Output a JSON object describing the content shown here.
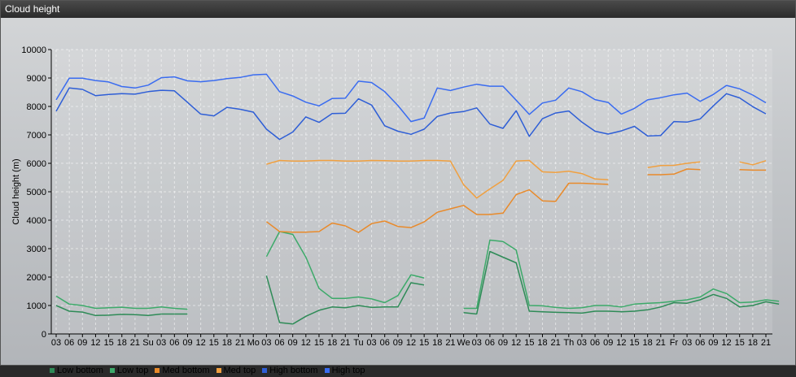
{
  "window": {
    "title": "Cloud height"
  },
  "chart_data": {
    "type": "line",
    "title": "",
    "xlabel": "",
    "ylabel": "Cloud height (m)",
    "ylim": [
      0,
      10000
    ],
    "yticks": [
      0,
      1000,
      2000,
      3000,
      4000,
      5000,
      6000,
      7000,
      8000,
      9000,
      10000
    ],
    "xticks": [
      "03",
      "06",
      "09",
      "12",
      "15",
      "18",
      "21",
      "Su",
      "03",
      "06",
      "09",
      "12",
      "15",
      "18",
      "21",
      "Mo",
      "03",
      "06",
      "09",
      "12",
      "15",
      "18",
      "21",
      "Tu",
      "03",
      "06",
      "09",
      "12",
      "15",
      "18",
      "21",
      "We",
      "03",
      "06",
      "09",
      "12",
      "15",
      "18",
      "21",
      "Th",
      "03",
      "06",
      "09",
      "12",
      "15",
      "18",
      "21",
      "Fr",
      "03",
      "06",
      "09",
      "12",
      "15",
      "18",
      "21"
    ],
    "grid": true,
    "legend_position": "bottom-left",
    "series": [
      {
        "name": "Low bottom",
        "color": "#2e8b57",
        "values": [
          1000,
          800,
          770,
          650,
          660,
          690,
          680,
          650,
          700,
          700,
          700,
          null,
          null,
          null,
          null,
          null,
          2050,
          400,
          350,
          620,
          830,
          950,
          920,
          1000,
          930,
          950,
          950,
          1800,
          1720,
          null,
          null,
          750,
          700,
          2900,
          2700,
          2500,
          800,
          780,
          760,
          750,
          730,
          800,
          800,
          780,
          800,
          850,
          950,
          1100,
          1080,
          1200,
          1390,
          1250,
          950,
          1000,
          1130,
          1050
        ]
      },
      {
        "name": "Low top",
        "color": "#3daa6a",
        "values": [
          1330,
          1050,
          1000,
          900,
          920,
          940,
          900,
          900,
          950,
          900,
          870,
          null,
          null,
          null,
          null,
          null,
          2720,
          3600,
          3500,
          2700,
          1600,
          1250,
          1250,
          1300,
          1230,
          1100,
          1350,
          2080,
          1970,
          null,
          null,
          900,
          900,
          3300,
          3250,
          2950,
          1000,
          990,
          930,
          900,
          920,
          1000,
          1000,
          950,
          1050,
          1080,
          1100,
          1150,
          1200,
          1300,
          1580,
          1420,
          1100,
          1120,
          1200,
          1150
        ]
      },
      {
        "name": "Med bottom",
        "color": "#e98a2a",
        "values": [
          null,
          null,
          null,
          null,
          null,
          null,
          null,
          null,
          null,
          null,
          null,
          null,
          null,
          null,
          null,
          null,
          3950,
          3600,
          3580,
          3580,
          3600,
          3900,
          3800,
          3570,
          3880,
          3970,
          3780,
          3740,
          3940,
          4280,
          4400,
          4520,
          4200,
          4200,
          4250,
          4900,
          5070,
          4680,
          4660,
          5300,
          5300,
          5280,
          5260,
          null,
          null,
          5600,
          5600,
          5620,
          5800,
          5780,
          null,
          null,
          5780,
          5760,
          5760
        ]
      },
      {
        "name": "Med top",
        "color": "#f0a040",
        "values": [
          null,
          null,
          null,
          null,
          null,
          null,
          null,
          null,
          null,
          null,
          null,
          null,
          null,
          null,
          null,
          null,
          5970,
          6100,
          6080,
          6080,
          6100,
          6100,
          6080,
          6080,
          6100,
          6090,
          6080,
          6080,
          6100,
          6100,
          6080,
          5250,
          4780,
          5100,
          5400,
          6080,
          6100,
          5700,
          5680,
          5720,
          5640,
          5450,
          5420,
          null,
          null,
          5850,
          5920,
          5930,
          6000,
          6050,
          null,
          null,
          6050,
          5950,
          6090
        ]
      },
      {
        "name": "High bottom",
        "color": "#2e5ed6",
        "values": [
          7830,
          8650,
          8600,
          8380,
          8420,
          8450,
          8430,
          8520,
          8570,
          8550,
          8140,
          7730,
          7670,
          7970,
          7900,
          7800,
          7200,
          6840,
          7100,
          7630,
          7440,
          7750,
          7760,
          8270,
          8050,
          7320,
          7130,
          7020,
          7200,
          7650,
          7770,
          7820,
          7950,
          7380,
          7230,
          7850,
          6950,
          7570,
          7770,
          7840,
          7450,
          7130,
          7030,
          7140,
          7300,
          6960,
          6980,
          7470,
          7450,
          7560,
          8020,
          8450,
          8300,
          7990,
          7740
        ]
      },
      {
        "name": "High top",
        "color": "#3a6cf0",
        "values": [
          8230,
          8990,
          8990,
          8910,
          8860,
          8700,
          8650,
          8750,
          9010,
          9040,
          8900,
          8870,
          8910,
          8980,
          9020,
          9110,
          9130,
          8520,
          8370,
          8150,
          8020,
          8280,
          8290,
          8890,
          8840,
          8520,
          8030,
          7470,
          7590,
          8650,
          8560,
          8680,
          8780,
          8710,
          8710,
          8220,
          7720,
          8120,
          8220,
          8650,
          8520,
          8240,
          8140,
          7730,
          7930,
          8230,
          8310,
          8410,
          8470,
          8180,
          8420,
          8740,
          8620,
          8400,
          8130
        ]
      }
    ]
  }
}
